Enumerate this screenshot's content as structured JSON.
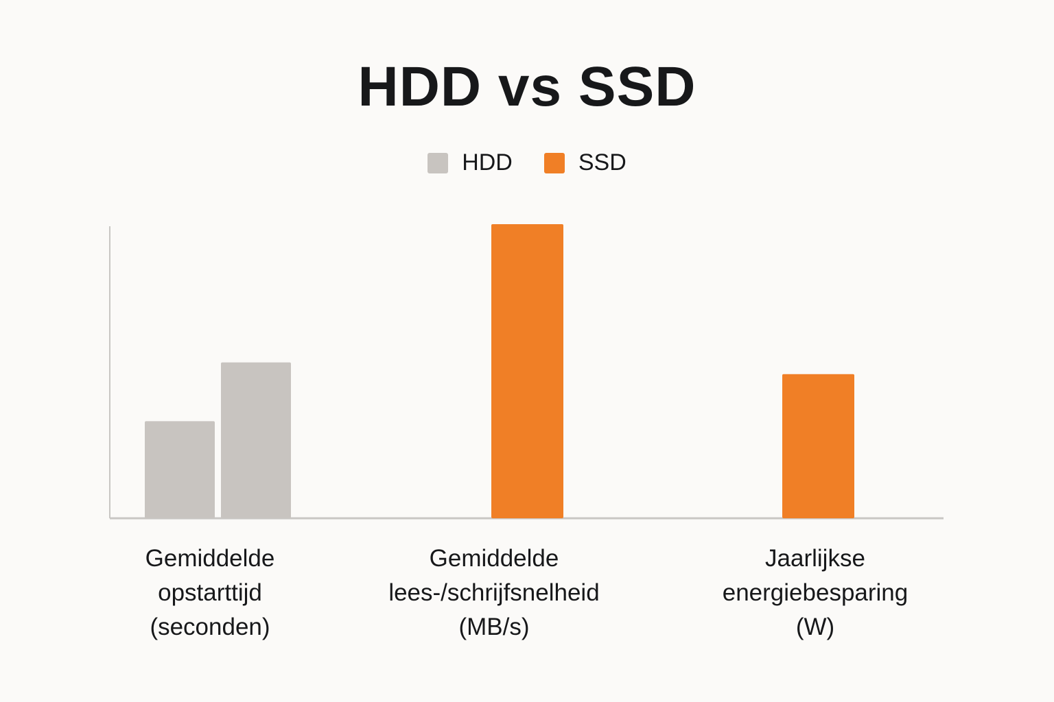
{
  "chart_data": {
    "type": "bar",
    "title": "HDD vs SSD",
    "xlabel": "",
    "ylabel": "",
    "categories": [
      "Gemiddelde\nopstarttijd\n(seconden)",
      "Gemiddelde\nlees-/schrijfsnelheid\n(MB/s)",
      "Jaarlijkse\nenergiebesparing\n(W)"
    ],
    "series": [
      {
        "name": "HDD",
        "color": "#c8c4c0",
        "values": [
          33,
          null,
          null
        ]
      },
      {
        "name": "SSD",
        "color": "#f07f26",
        "values": [
          53,
          100,
          49
        ]
      }
    ],
    "series_colors_note": "SSD bar in first category drawn in HDD grey as in original",
    "bar_colors": [
      [
        "#c8c4c0",
        "#c8c4c0"
      ],
      [
        null,
        "#f07f26"
      ],
      [
        null,
        "#f07f26"
      ]
    ],
    "ylim": [
      0,
      100
    ],
    "grid": false,
    "legend_position": "top-center"
  }
}
